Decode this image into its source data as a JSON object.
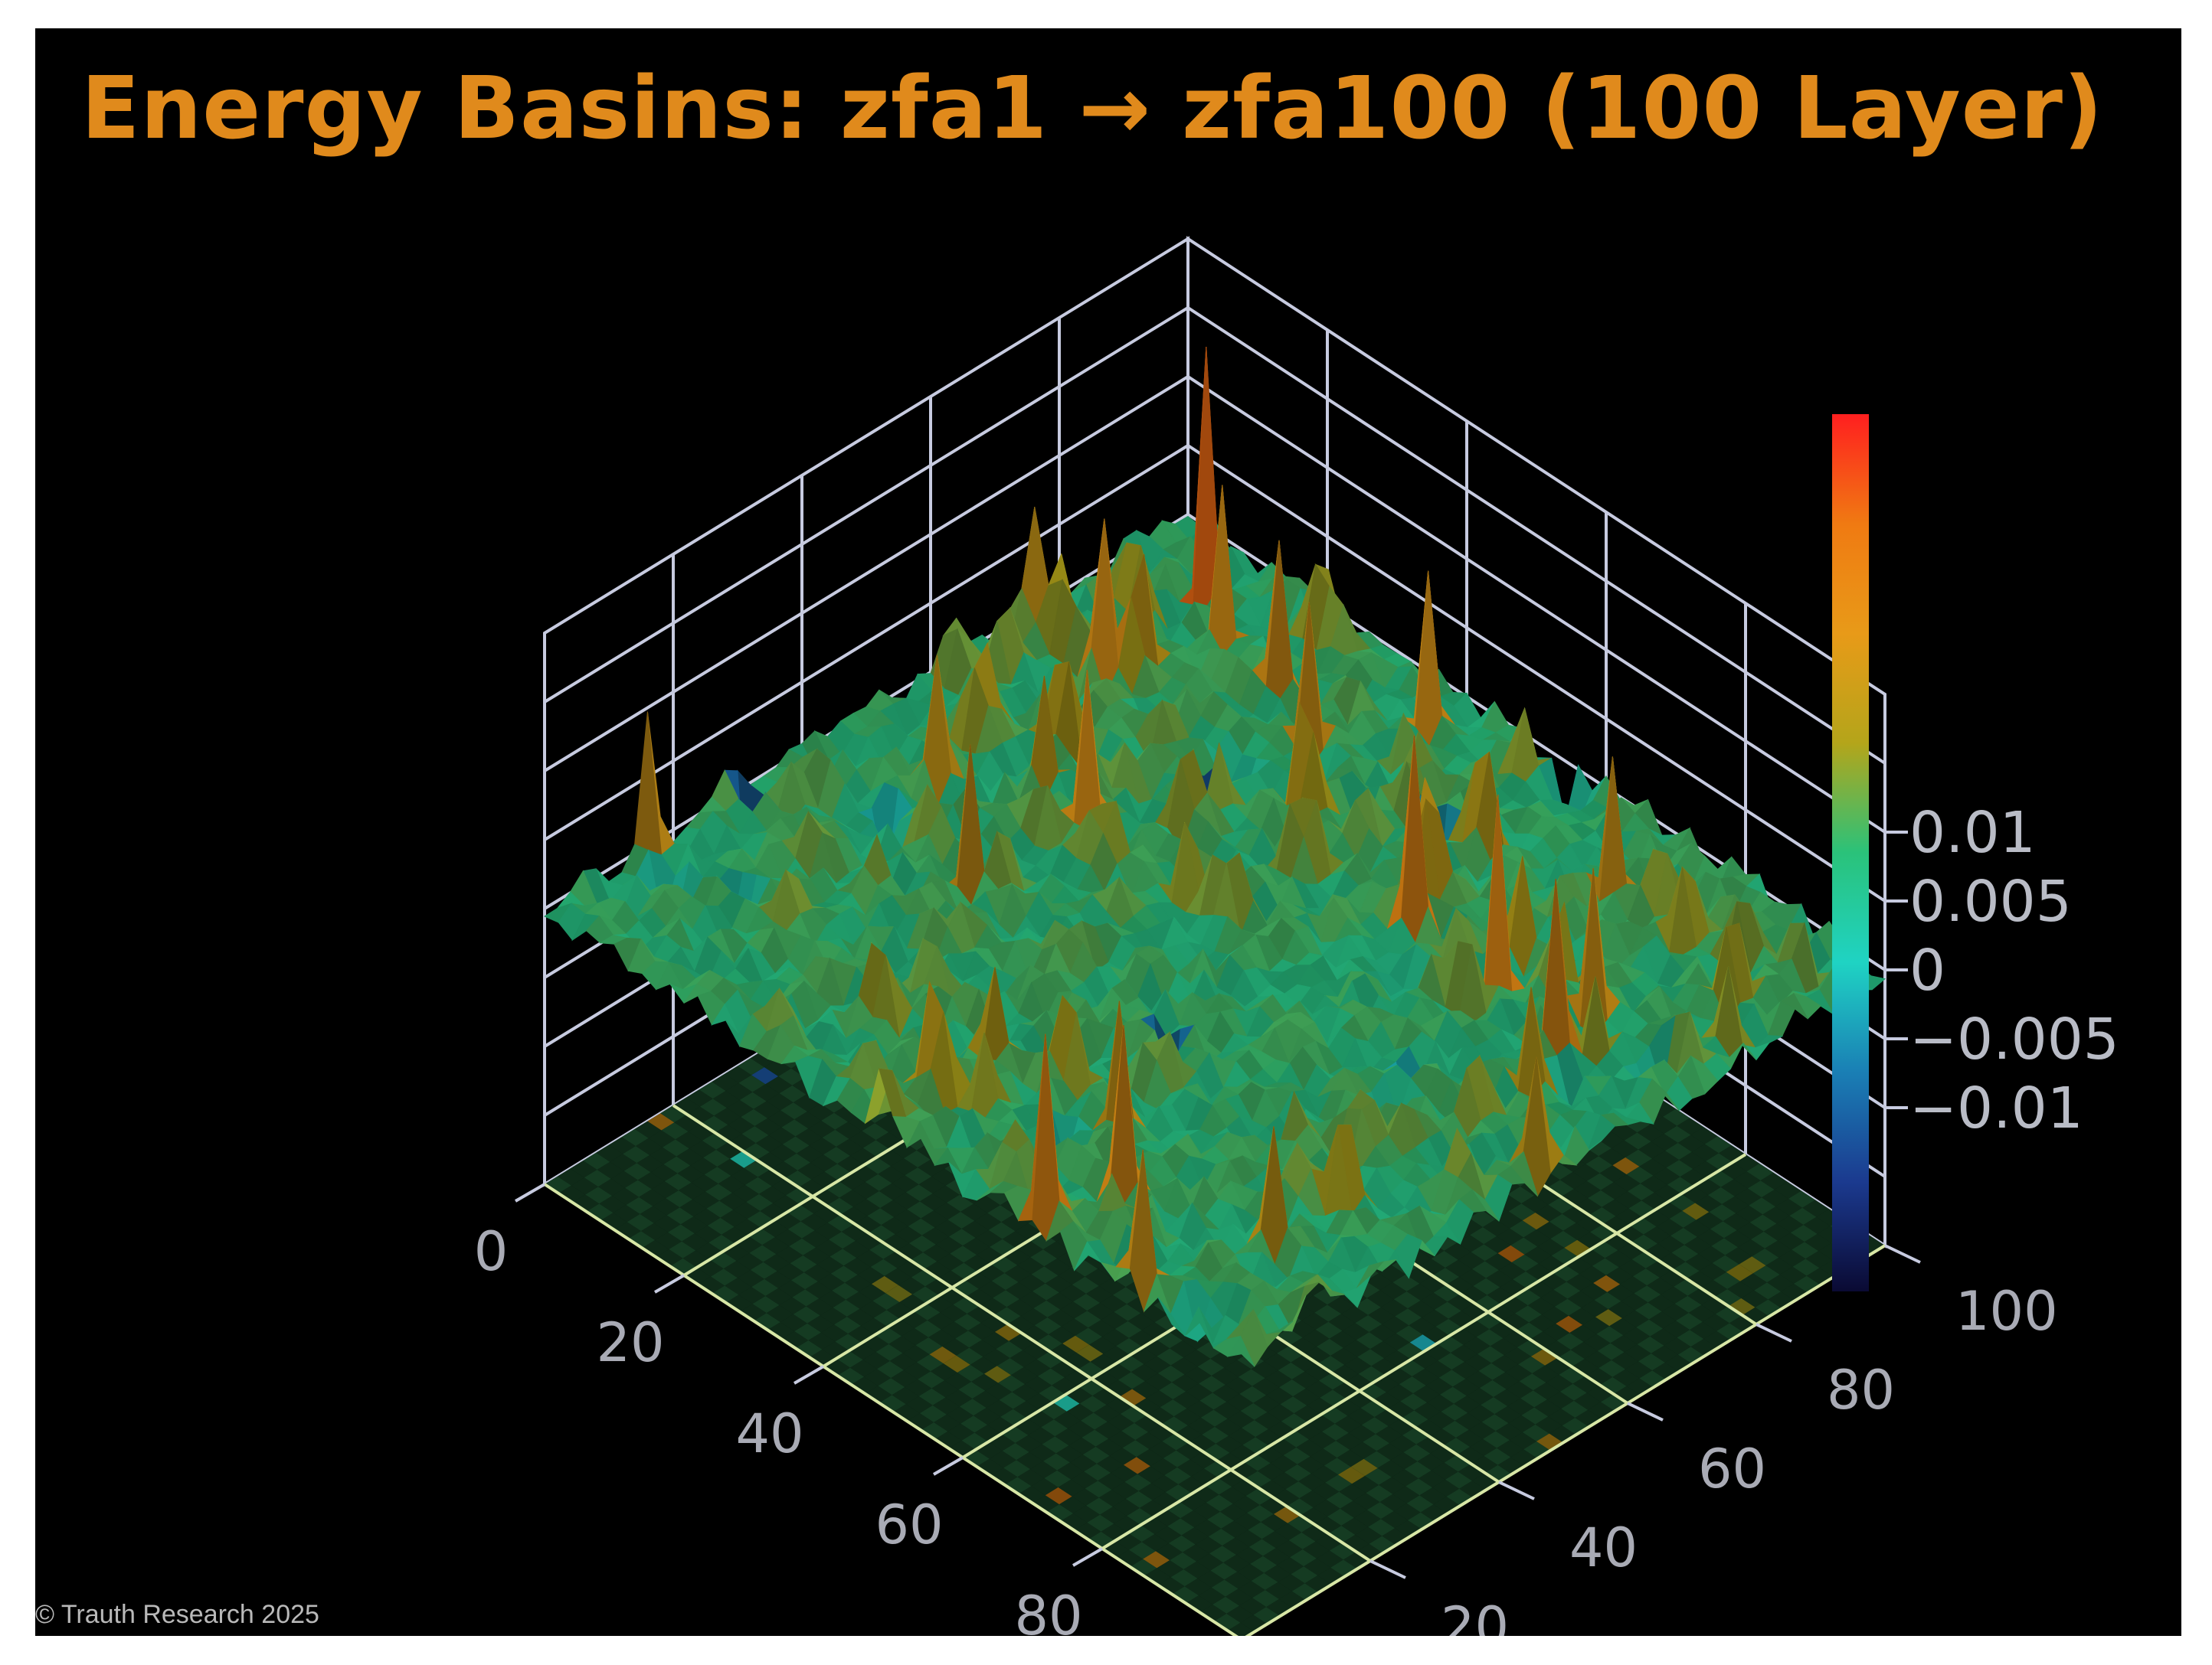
{
  "title": "Energy Basins: zfa1 → zfa100 (100 Layer)",
  "footer": {
    "copyright": "© Trauth Research 2025"
  },
  "chart_data": {
    "type": "surface",
    "grid_size": [
      101,
      101
    ],
    "x": {
      "range": [
        0,
        100
      ],
      "tick_labels": [
        "0",
        "20",
        "40",
        "60",
        "80",
        "100"
      ]
    },
    "y": {
      "range": [
        0,
        100
      ],
      "tick_labels": [
        "0",
        "20",
        "40",
        "60",
        "80",
        "100"
      ]
    },
    "z": {
      "tick_values": [
        0.01,
        0.005,
        0,
        -0.005,
        -0.01
      ],
      "tick_labels": [
        "0.01",
        "0.005",
        "0",
        "−0.005",
        "−0.01"
      ],
      "range": [
        -0.02,
        0.02
      ]
    },
    "surface_description": "Rugged random energy landscape, mostly near z≈0 (cyan) with many sharp positive spikes (orange) and a few deep negative wells (blue); the tallest spike is red (~0.02).",
    "floor_projection": true,
    "colorscale": [
      "#0a0a33",
      "#1b3a8f",
      "#1a7fb5",
      "#1fd3c3",
      "#2ac27a",
      "#b4a51a",
      "#e89a18",
      "#f07a12",
      "#ff1f1f"
    ],
    "colorbar": {
      "shown": true,
      "position": "right"
    },
    "grid": true,
    "background_color": "#000000",
    "title_color": "#e08a1c"
  }
}
